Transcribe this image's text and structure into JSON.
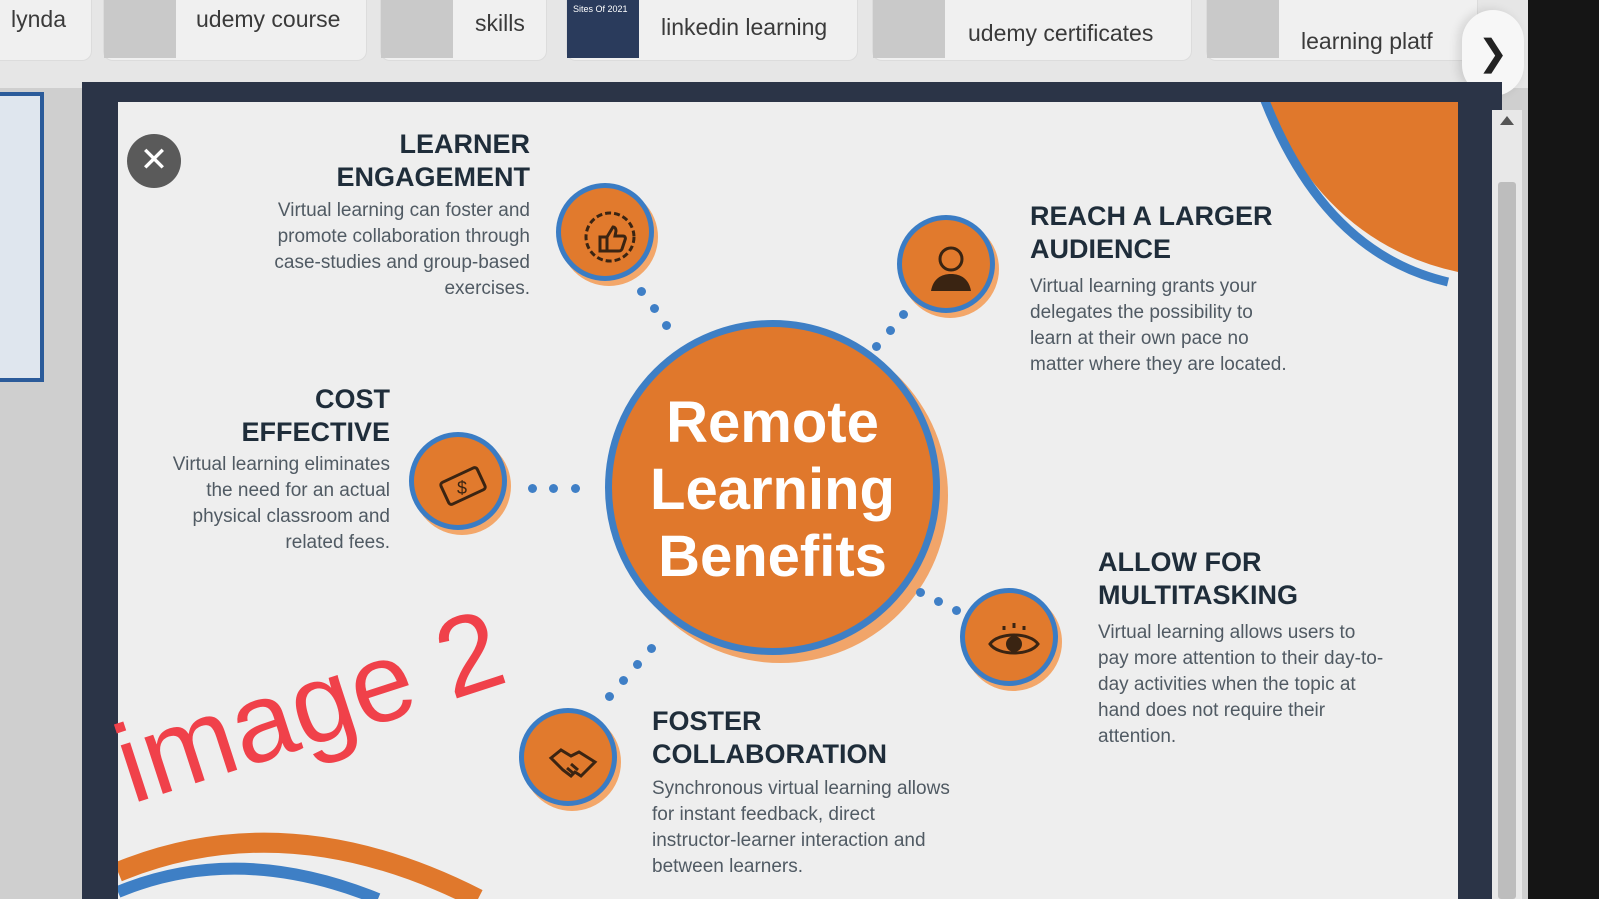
{
  "search_chips": [
    {
      "label": "lynda"
    },
    {
      "label": "udemy course"
    },
    {
      "label": "skills"
    },
    {
      "label": "linkedin learning"
    },
    {
      "label": "udemy certificates"
    },
    {
      "label": "learning platf"
    }
  ],
  "thumbnail_text": "Sites Of 2021",
  "next_icon": "chevron-right-icon",
  "viewer": {
    "close_icon": "close-icon"
  },
  "infographic": {
    "center_line1": "Remote",
    "center_line2": "Learning",
    "center_line3": "Benefits",
    "engagement": {
      "title": "LEARNER ENGAGEMENT",
      "desc": "Virtual learning can foster and promote collaboration through case-studies and group-based exercises.",
      "icon": "thumbs-up-icon"
    },
    "audience": {
      "title": "REACH A LARGER AUDIENCE",
      "desc": "Virtual learning grants your delegates the possibility to learn at their own pace no matter where they are located.",
      "icon": "person-icon"
    },
    "cost": {
      "title": "COST EFFECTIVE",
      "desc": "Virtual learning eliminates the need for an actual physical classroom and related fees.",
      "icon": "money-icon"
    },
    "multitasking": {
      "title": "ALLOW FOR MULTITASKING",
      "desc": "Virtual learning allows users to pay more attention to their day-to-day activities when the topic at hand does not require their attention.",
      "icon": "eye-icon"
    },
    "collaboration": {
      "title": "FOSTER COLLABORATION",
      "desc": "Synchronous virtual learning allows for instant feedback, direct instructor-learner interaction and between learners.",
      "icon": "handshake-icon"
    },
    "colors": {
      "orange": "#e0782c",
      "blue": "#3e7fc5",
      "navy": "#1f2d3a"
    }
  },
  "watermark": "image 2"
}
